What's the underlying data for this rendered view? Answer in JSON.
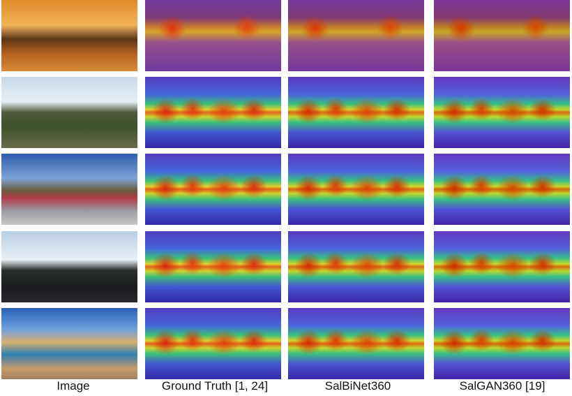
{
  "figure": {
    "columns": [
      "Image",
      "Ground Truth [1, 24]",
      "SalBiNet360",
      "SalGAN360 [19]"
    ]
  }
}
